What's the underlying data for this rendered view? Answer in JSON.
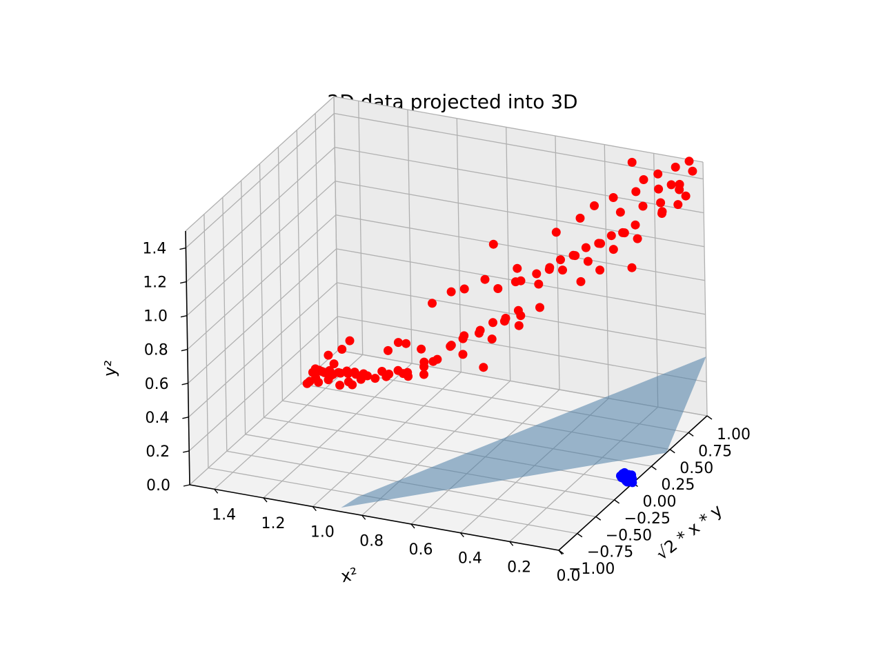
{
  "chart_data": {
    "type": "scatter",
    "title": "2D data projected into 3D",
    "xlabel": "x²",
    "ylabel": "√2 * x * y",
    "zlabel": "y²",
    "xlim": [
      0.0,
      1.5
    ],
    "ylim": [
      -1.0,
      1.0
    ],
    "zlim": [
      0.0,
      1.5
    ],
    "grid": true,
    "x_ticks": [
      "1.4",
      "1.2",
      "1.0",
      "0.8",
      "0.6",
      "0.4",
      "0.2",
      "0.0"
    ],
    "x_tick_values": [
      1.4,
      1.2,
      1.0,
      0.8,
      0.6,
      0.4,
      0.2,
      0.0
    ],
    "y_ticks": [
      "−1.00",
      "−0.75",
      "−0.50",
      "−0.25",
      "0.00",
      "0.25",
      "0.50",
      "0.75",
      "1.00"
    ],
    "y_tick_values": [
      -1.0,
      -0.75,
      -0.5,
      -0.25,
      0.0,
      0.25,
      0.5,
      0.75,
      1.0
    ],
    "z_ticks": [
      "0.0",
      "0.2",
      "0.4",
      "0.6",
      "0.8",
      "1.0",
      "1.2",
      "1.4"
    ],
    "z_tick_values": [
      0.0,
      0.2,
      0.4,
      0.6,
      0.8,
      1.0,
      1.2,
      1.4
    ],
    "colors": {
      "outer": "#ff0000",
      "inner": "#0000ff",
      "plane": "#4f7fa8",
      "pane": "#f2f2f2",
      "grid": "#b0b0b0"
    },
    "plane": {
      "corners": [
        {
          "x": 0.9,
          "y": -0.95,
          "z": 0.0
        },
        {
          "x": 0.0,
          "y": 0.45,
          "z": 0.0
        },
        {
          "x": 0.0,
          "y": 1.0,
          "z": 0.35
        },
        {
          "x": 0.85,
          "y": -0.88,
          "z": 0.05
        }
      ]
    },
    "series": [
      {
        "color": "#ff0000",
        "points": [
          [
            1.28,
            -0.02,
            0.3
          ],
          [
            1.27,
            0.03,
            0.32
          ],
          [
            1.26,
            -0.05,
            0.29
          ],
          [
            1.29,
            0.06,
            0.31
          ],
          [
            1.25,
            0.0,
            0.33
          ],
          [
            1.3,
            -0.07,
            0.28
          ],
          [
            1.23,
            0.02,
            0.31
          ],
          [
            1.31,
            0.04,
            0.3
          ],
          [
            1.22,
            -0.03,
            0.34
          ],
          [
            1.24,
            0.08,
            0.29
          ],
          [
            1.21,
            -0.08,
            0.33
          ],
          [
            1.26,
            0.1,
            0.3
          ],
          [
            1.2,
            0.05,
            0.32
          ],
          [
            1.28,
            -0.1,
            0.31
          ],
          [
            1.19,
            -0.01,
            0.35
          ],
          [
            1.18,
            0.07,
            0.33
          ],
          [
            1.17,
            -0.06,
            0.3
          ],
          [
            1.16,
            0.02,
            0.34
          ],
          [
            1.15,
            0.09,
            0.31
          ],
          [
            1.14,
            -0.04,
            0.32
          ],
          [
            1.13,
            0.01,
            0.36
          ],
          [
            1.12,
            0.06,
            0.3
          ],
          [
            1.11,
            -0.09,
            0.33
          ],
          [
            1.1,
            0.03,
            0.35
          ],
          [
            1.27,
            0.12,
            0.38
          ],
          [
            1.25,
            -0.12,
            0.4
          ],
          [
            1.22,
            0.14,
            0.42
          ],
          [
            1.18,
            -0.1,
            0.44
          ],
          [
            1.2,
            0.18,
            0.46
          ],
          [
            1.05,
            0.02,
            0.34
          ],
          [
            1.06,
            -0.05,
            0.38
          ],
          [
            1.04,
            0.08,
            0.36
          ],
          [
            1.0,
            0.04,
            0.37
          ],
          [
            0.98,
            -0.06,
            0.4
          ],
          [
            0.96,
            0.1,
            0.36
          ],
          [
            0.95,
            0.0,
            0.42
          ],
          [
            0.93,
            0.06,
            0.39
          ],
          [
            0.9,
            -0.03,
            0.41
          ],
          [
            0.88,
            0.12,
            0.44
          ],
          [
            0.86,
            0.05,
            0.4
          ],
          [
            1.02,
            0.1,
            0.48
          ],
          [
            0.99,
            0.14,
            0.52
          ],
          [
            0.94,
            0.08,
            0.55
          ],
          [
            0.9,
            0.15,
            0.5
          ],
          [
            0.85,
            0.02,
            0.46
          ],
          [
            0.82,
            0.1,
            0.48
          ],
          [
            0.8,
            -0.02,
            0.52
          ],
          [
            0.78,
            0.16,
            0.55
          ],
          [
            0.76,
            0.08,
            0.58
          ],
          [
            0.74,
            0.2,
            0.6
          ],
          [
            0.72,
            0.12,
            0.62
          ],
          [
            0.7,
            0.05,
            0.56
          ],
          [
            0.68,
            0.22,
            0.64
          ],
          [
            0.66,
            0.14,
            0.66
          ],
          [
            0.64,
            0.26,
            0.68
          ],
          [
            0.62,
            0.18,
            0.62
          ],
          [
            0.6,
            0.3,
            0.7
          ],
          [
            0.58,
            0.22,
            0.72
          ],
          [
            0.56,
            0.34,
            0.74
          ],
          [
            0.54,
            0.28,
            0.68
          ],
          [
            0.88,
            0.24,
            0.74
          ],
          [
            0.82,
            0.3,
            0.8
          ],
          [
            0.76,
            0.28,
            0.84
          ],
          [
            0.7,
            0.36,
            0.88
          ],
          [
            0.66,
            0.4,
            0.82
          ],
          [
            0.6,
            0.44,
            0.86
          ],
          [
            0.56,
            0.38,
            0.9
          ],
          [
            0.52,
            0.46,
            0.92
          ],
          [
            0.5,
            0.42,
            0.88
          ],
          [
            0.48,
            0.5,
            0.94
          ],
          [
            0.46,
            0.44,
            0.98
          ],
          [
            0.44,
            0.52,
            1.0
          ],
          [
            0.42,
            0.48,
            0.96
          ],
          [
            0.4,
            0.56,
            1.02
          ],
          [
            0.38,
            0.52,
            1.04
          ],
          [
            0.36,
            0.6,
            1.06
          ],
          [
            0.34,
            0.56,
            1.0
          ],
          [
            0.32,
            0.64,
            1.08
          ],
          [
            0.3,
            0.6,
            1.1
          ],
          [
            0.28,
            0.68,
            1.12
          ],
          [
            0.26,
            0.64,
            1.06
          ],
          [
            0.24,
            0.7,
            1.14
          ],
          [
            0.22,
            0.66,
            1.16
          ],
          [
            0.2,
            0.74,
            1.18
          ],
          [
            0.18,
            0.7,
            1.12
          ],
          [
            0.4,
            0.66,
            1.2
          ],
          [
            0.36,
            0.72,
            1.26
          ],
          [
            0.3,
            0.78,
            1.3
          ],
          [
            0.26,
            0.74,
            1.24
          ],
          [
            0.22,
            0.82,
            1.34
          ],
          [
            0.18,
            0.78,
            1.28
          ],
          [
            0.14,
            0.86,
            1.36
          ],
          [
            0.12,
            0.82,
            1.3
          ],
          [
            0.1,
            0.9,
            1.38
          ],
          [
            0.16,
            0.92,
            1.42
          ],
          [
            0.08,
            0.94,
            1.34
          ],
          [
            0.06,
            0.88,
            1.4
          ],
          [
            0.1,
            0.96,
            1.46
          ],
          [
            0.05,
            0.98,
            1.5
          ],
          [
            0.12,
            0.84,
            1.24
          ],
          [
            0.14,
            0.9,
            1.2
          ],
          [
            0.08,
            0.92,
            1.26
          ],
          [
            0.2,
            0.86,
            1.4
          ],
          [
            0.06,
            0.96,
            1.3
          ],
          [
            0.04,
            0.99,
            1.44
          ],
          [
            0.46,
            0.3,
            0.8
          ],
          [
            0.52,
            0.24,
            0.76
          ],
          [
            0.58,
            0.4,
            0.96
          ],
          [
            0.34,
            0.46,
            0.92
          ],
          [
            0.28,
            0.52,
            0.98
          ],
          [
            0.7,
            0.48,
            1.04
          ],
          [
            0.24,
            0.84,
            1.5
          ],
          [
            0.18,
            0.62,
            0.98
          ],
          [
            0.48,
            0.6,
            1.12
          ],
          [
            0.62,
            0.06,
            0.5
          ]
        ]
      },
      {
        "color": "#0000ff",
        "points": [
          [
            0.01,
            0.0,
            0.01
          ],
          [
            0.005,
            0.01,
            0.02
          ],
          [
            0.02,
            -0.01,
            0.005
          ],
          [
            0.015,
            0.005,
            0.03
          ],
          [
            0.03,
            0.01,
            0.01
          ],
          [
            0.008,
            -0.005,
            0.025
          ],
          [
            0.025,
            0.0,
            0.02
          ],
          [
            0.012,
            0.015,
            0.015
          ],
          [
            0.035,
            -0.01,
            0.03
          ],
          [
            0.018,
            0.008,
            0.04
          ],
          [
            0.04,
            0.005,
            0.015
          ],
          [
            0.022,
            -0.012,
            0.035
          ],
          [
            0.006,
            0.004,
            0.045
          ],
          [
            0.028,
            0.012,
            0.028
          ],
          [
            0.045,
            -0.004,
            0.022
          ],
          [
            0.014,
            -0.008,
            0.05
          ],
          [
            0.032,
            0.006,
            0.038
          ],
          [
            0.05,
            0.0,
            0.03
          ],
          [
            0.002,
            0.0,
            0.002
          ],
          [
            0.038,
            0.014,
            0.046
          ],
          [
            0.016,
            0.002,
            0.012
          ],
          [
            0.026,
            -0.006,
            0.008
          ],
          [
            0.044,
            0.01,
            0.04
          ],
          [
            0.01,
            0.012,
            0.034
          ]
        ]
      }
    ]
  }
}
